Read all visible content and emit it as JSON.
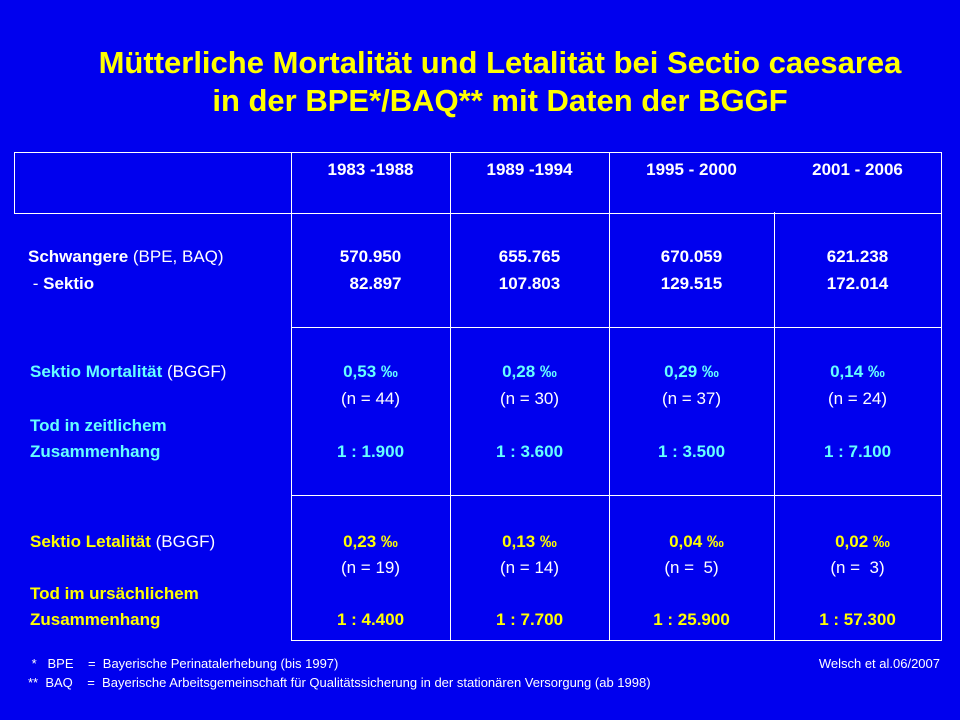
{
  "title": {
    "line1": "Mütterliche Mortalität und Letalität bei Sectio caesarea",
    "line2": "in der BPE*/BAQ** mit Daten der BGGF"
  },
  "table": {
    "periods": [
      "1983 -1988",
      "1989 -1994",
      "1995 - 2000",
      "2001 - 2006"
    ],
    "row_pregnant": {
      "label_bold": "Schwangere",
      "label_suffix": " (BPE, BAQ)",
      "sub_prefix": " - ",
      "sub_label": "Sektio",
      "values": [
        "570.950",
        "655.765",
        "670.059",
        "621.238"
      ],
      "sektio_values": [
        "82.897",
        "107.803",
        "129.515",
        "172.014"
      ]
    },
    "row_mortality": {
      "label_bold": "Sektio Mortalität",
      "label_suffix": " (BGGF)",
      "desc1": "Tod in zeitlichem",
      "desc2": "Zusammenhang",
      "rates": [
        "0,53 ‰",
        "0,28 ‰",
        "0,29 ‰",
        "0,14 ‰"
      ],
      "counts": [
        "(n = 44)",
        "(n = 30)",
        "(n = 37)",
        "(n = 24)"
      ],
      "ratios": [
        "1 : 1.900",
        "1 : 3.600",
        "1 : 3.500",
        "1 : 7.100"
      ]
    },
    "row_lethality": {
      "label_bold": "Sektio Letalität",
      "label_suffix": " (BGGF)",
      "desc1": "Tod im ursächlichem",
      "desc2": "Zusammenhang",
      "rates": [
        "0,23 ‰",
        "0,13 ‰",
        "0,04 ‰",
        "0,02 ‰"
      ],
      "counts": [
        "(n = 19)",
        "(n = 14)",
        "(n =  5)",
        "(n =  3)"
      ],
      "ratios": [
        "1 : 4.400",
        "1 : 7.700",
        "1 : 25.900",
        "1 : 57.300"
      ]
    }
  },
  "footer": {
    "note1": " *   BPE    =  Bayerische Perinatalerhebung (bis 1997)",
    "note2": "**  BAQ    =  Bayerische Arbeitsgemeinschaft für Qualitätssicherung in der stationären Versorgung (ab 1998)",
    "credit": "Welsch et al.06/2007"
  },
  "colors": {
    "background": "#0000ee",
    "title": "#ffff00",
    "mortality_label": "#66ffff",
    "lethality_label": "#ffff00"
  }
}
